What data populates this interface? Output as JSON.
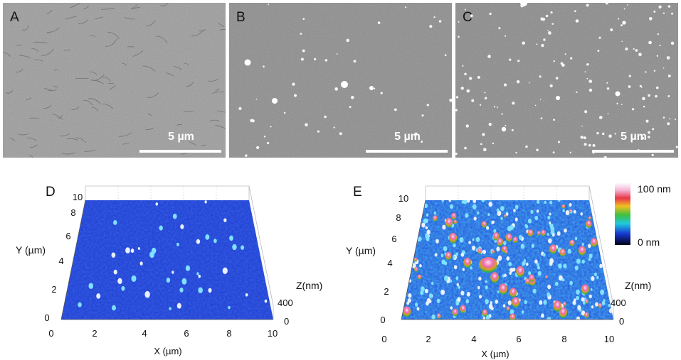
{
  "panels": {
    "A": {
      "letter": "A",
      "scale_bar": "5 µm"
    },
    "B": {
      "letter": "B",
      "scale_bar": "5 µm"
    },
    "C": {
      "letter": "C",
      "scale_bar": "5 µm"
    },
    "D": {
      "letter": "D",
      "x_label": "X (µm)",
      "y_label": "Y (µm)",
      "z_label": "Z(nm)",
      "x_ticks": [
        "0",
        "2",
        "4",
        "6",
        "8",
        "10"
      ],
      "y_ticks": [
        "0",
        "2",
        "4",
        "6",
        "8",
        "10"
      ],
      "z_ticks": [
        "400",
        "0"
      ]
    },
    "E": {
      "letter": "E",
      "x_label": "X (µm)",
      "y_label": "Y (µm)",
      "z_label": "Z(nm)",
      "x_ticks": [
        "0",
        "2",
        "4",
        "6",
        "8",
        "10"
      ],
      "y_ticks": [
        "0",
        "2",
        "4",
        "6",
        "8",
        "10"
      ],
      "z_ticks": [
        "400",
        "0"
      ]
    }
  },
  "colorbar": {
    "max_label": "100 nm",
    "min_label": "0 nm"
  },
  "colors": {
    "afm_low": "#1a3fd6",
    "afm_peak": "#e64ba0",
    "sem_gray": "#8a8a8a"
  }
}
